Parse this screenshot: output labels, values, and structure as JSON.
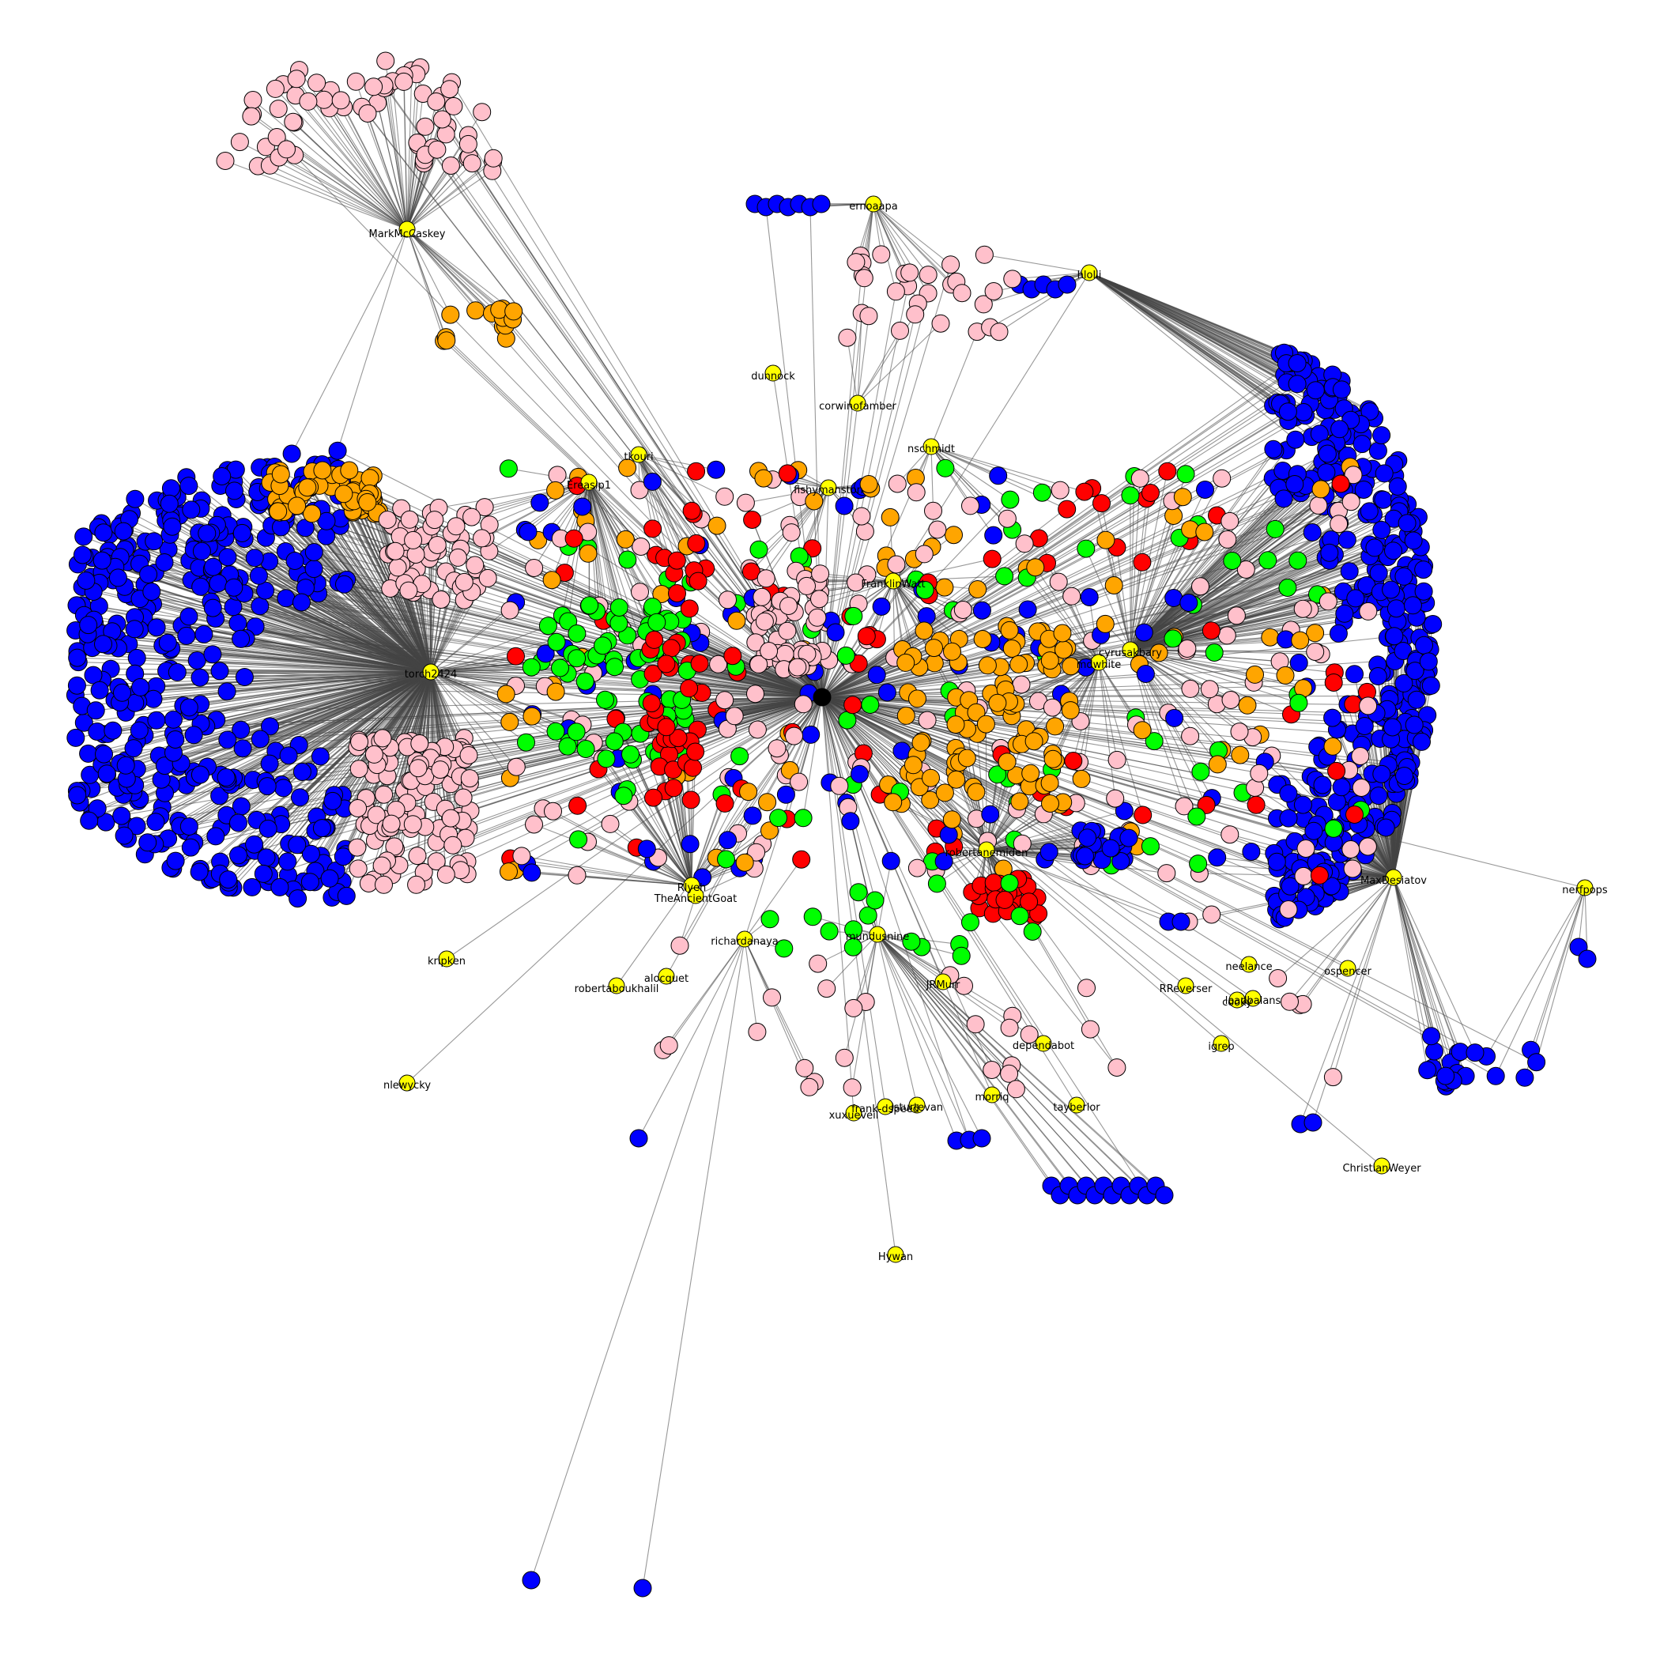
{
  "colors": {
    "blue": "#0000ff",
    "pink": "#ffc0cb",
    "orange": "#ffa500",
    "red": "#ff0000",
    "green": "#00ff00",
    "yellow": "#ffff00",
    "hub": "#000000",
    "edge": "#444444"
  },
  "labels": [
    "MarkMcCaskey",
    "ernoaapa",
    "hlolli",
    "dunnock",
    "corwinofamber",
    "tkouri",
    "Ereasip1",
    "nschmidt",
    "fishymanston",
    "FranklinWatt",
    "torch2424",
    "cyrusakbary",
    "mdwhite",
    "robertanemiden",
    "MaxDesiatov",
    "nerfpops",
    "Rlyeh",
    "TheAncientGoat",
    "mundusnine",
    "richardanaya",
    "kripken",
    "alocquet",
    "robertaboukhalil",
    "JRMurr",
    "neelance",
    "ospencer",
    "RReverser",
    "cooky",
    "loadbalans",
    "igrep",
    "dependabot",
    "nlewycky",
    "morriq",
    "xuxueveil",
    "frank-dspeed",
    "jsturtevan",
    "tayberlor",
    "ChristianWeyer",
    "Hywan"
  ]
}
